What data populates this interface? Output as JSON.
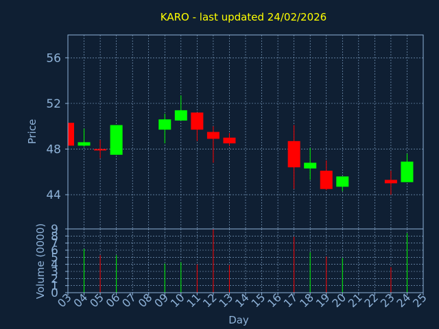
{
  "colors": {
    "background": "#0f1f33",
    "axis": "#8fb3d9",
    "grid": "#8fb3d9",
    "title": "#ffff00",
    "up": "#00ff00",
    "down": "#ff0000",
    "wick": "#8fb3d9"
  },
  "chart_data": [
    {
      "type": "candlestick",
      "title": "KARO - last updated 24/02/2026",
      "xlabel": "Day",
      "ylabel": "Price",
      "x_range": [
        "03",
        "25"
      ],
      "ylim": [
        41,
        58
      ],
      "yticks": [
        "44",
        "48",
        "52",
        "56"
      ],
      "xticks": [
        "03",
        "04",
        "05",
        "06",
        "07",
        "08",
        "09",
        "10",
        "11",
        "12",
        "13",
        "14",
        "15",
        "16",
        "17",
        "18",
        "19",
        "20",
        "21",
        "22",
        "23",
        "24",
        "25"
      ],
      "grid": true,
      "candles": [
        {
          "day": "03",
          "open": 50.3,
          "close": 48.3,
          "high": 50.3,
          "low": 48.3
        },
        {
          "day": "04",
          "open": 48.3,
          "close": 48.6,
          "high": 49.8,
          "low": 48.2
        },
        {
          "day": "05",
          "open": 48.0,
          "close": 47.9,
          "high": 48.8,
          "low": 47.2
        },
        {
          "day": "06",
          "open": 47.5,
          "close": 50.1,
          "high": 50.1,
          "low": 47.5
        },
        {
          "day": "09",
          "open": 49.7,
          "close": 50.6,
          "high": 51.1,
          "low": 48.5
        },
        {
          "day": "10",
          "open": 50.5,
          "close": 51.4,
          "high": 52.7,
          "low": 50.5
        },
        {
          "day": "11",
          "open": 51.2,
          "close": 49.7,
          "high": 51.2,
          "low": 48.7
        },
        {
          "day": "12",
          "open": 49.5,
          "close": 48.9,
          "high": 50.0,
          "low": 46.8
        },
        {
          "day": "13",
          "open": 49.0,
          "close": 48.5,
          "high": 49.4,
          "low": 48.3
        },
        {
          "day": "17",
          "open": 48.7,
          "close": 46.4,
          "high": 50.1,
          "low": 44.5
        },
        {
          "day": "18",
          "open": 46.3,
          "close": 46.8,
          "high": 48.1,
          "low": 45.3
        },
        {
          "day": "19",
          "open": 46.1,
          "close": 44.5,
          "high": 47.0,
          "low": 44.4
        },
        {
          "day": "20",
          "open": 44.7,
          "close": 45.6,
          "high": 45.6,
          "low": 44.3
        },
        {
          "day": "23",
          "open": 45.3,
          "close": 45.0,
          "high": 46.1,
          "low": 44.0
        },
        {
          "day": "24",
          "open": 45.1,
          "close": 46.9,
          "high": 47.6,
          "low": 45.1
        }
      ]
    },
    {
      "type": "bar",
      "ylabel": "Volume (0000)",
      "ylim": [
        0,
        9
      ],
      "yticks": [
        "0",
        "1",
        "2",
        "3",
        "4",
        "5",
        "6",
        "7",
        "8",
        "9"
      ],
      "grid": true,
      "bars": [
        {
          "day": "04",
          "value": 6.2,
          "dir": "up"
        },
        {
          "day": "05",
          "value": 5.3,
          "dir": "down"
        },
        {
          "day": "06",
          "value": 5.3,
          "dir": "up"
        },
        {
          "day": "09",
          "value": 4.1,
          "dir": "up"
        },
        {
          "day": "10",
          "value": 4.3,
          "dir": "up"
        },
        {
          "day": "11",
          "value": 4.0,
          "dir": "down"
        },
        {
          "day": "12",
          "value": 9.0,
          "dir": "down"
        },
        {
          "day": "13",
          "value": 3.9,
          "dir": "down"
        },
        {
          "day": "17",
          "value": 7.9,
          "dir": "down"
        },
        {
          "day": "18",
          "value": 5.7,
          "dir": "up"
        },
        {
          "day": "19",
          "value": 5.1,
          "dir": "down"
        },
        {
          "day": "20",
          "value": 4.9,
          "dir": "up"
        },
        {
          "day": "23",
          "value": 3.6,
          "dir": "down"
        },
        {
          "day": "24",
          "value": 8.4,
          "dir": "up"
        }
      ]
    }
  ]
}
